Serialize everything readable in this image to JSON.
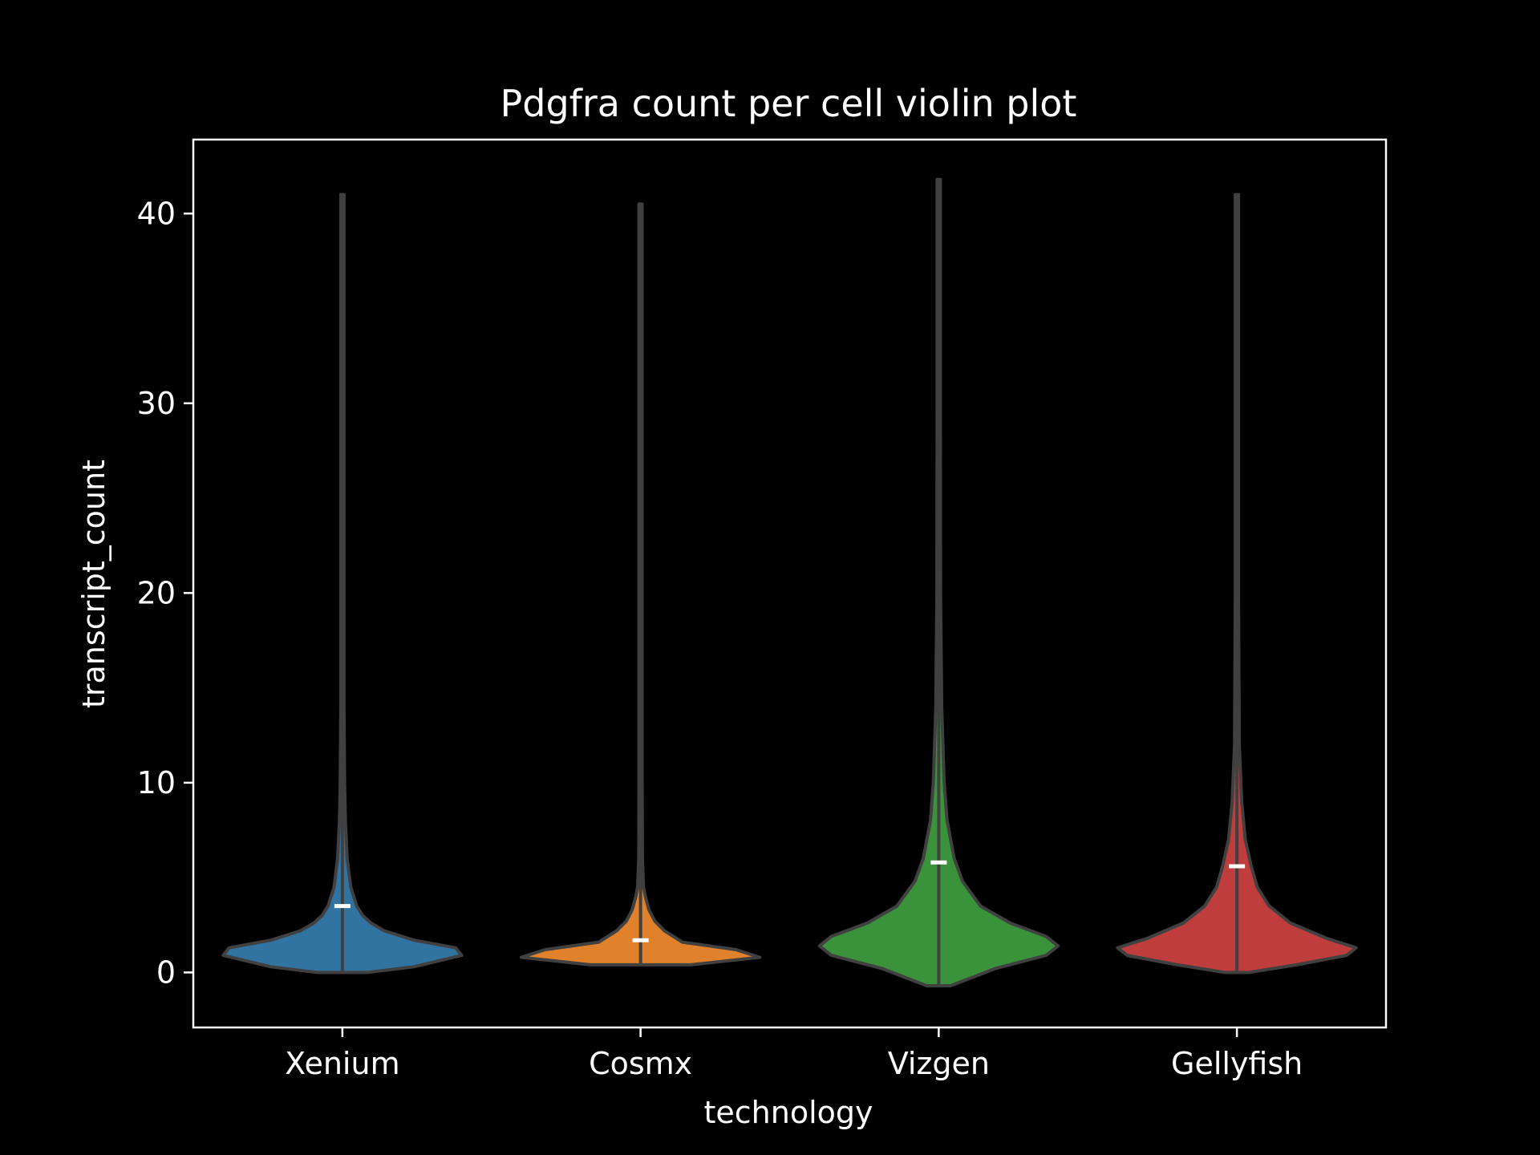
{
  "colors": {
    "background": "#000000",
    "axes": "#ffffff",
    "violin_edge": "#404040",
    "median_mark": "#ffffff"
  },
  "chart_data": {
    "type": "violin",
    "title": "Pdgfra count per cell violin plot",
    "xlabel": "technology",
    "ylabel": "transcript_count",
    "ylim": [
      -2.9,
      43.9
    ],
    "yticks": [
      "0",
      "10",
      "20",
      "30",
      "40"
    ],
    "ytick_values": [
      0,
      10,
      20,
      30,
      40
    ],
    "grid": false,
    "categories": [
      "Xenium",
      "Cosmx",
      "Vizgen",
      "Gellyfish"
    ],
    "series": [
      {
        "color": "#3274a1",
        "median": 3.5,
        "min": 0.0,
        "max": 41.0,
        "density_profile": [
          [
            0.0,
            0.21
          ],
          [
            0.3,
            0.6
          ],
          [
            0.9,
            1.0
          ],
          [
            1.3,
            0.95
          ],
          [
            1.7,
            0.6
          ],
          [
            2.2,
            0.35
          ],
          [
            2.6,
            0.24
          ],
          [
            3.0,
            0.17
          ],
          [
            3.5,
            0.12
          ],
          [
            4.5,
            0.07
          ],
          [
            6.0,
            0.04
          ],
          [
            8.0,
            0.025
          ],
          [
            10.0,
            0.018
          ],
          [
            14.0,
            0.012
          ],
          [
            20.0,
            0.009
          ],
          [
            30.0,
            0.007
          ],
          [
            41.0,
            0.005
          ]
        ]
      },
      {
        "color": "#e1812c",
        "median": 1.7,
        "min": 0.4,
        "max": 40.5,
        "density_profile": [
          [
            0.4,
            0.42
          ],
          [
            0.8,
            1.0
          ],
          [
            1.2,
            0.8
          ],
          [
            1.6,
            0.35
          ],
          [
            2.2,
            0.2
          ],
          [
            2.7,
            0.12
          ],
          [
            3.3,
            0.07
          ],
          [
            4.0,
            0.04
          ],
          [
            4.5,
            0.025
          ],
          [
            6.0,
            0.015
          ],
          [
            10.0,
            0.01
          ],
          [
            20.0,
            0.008
          ],
          [
            40.5,
            0.006
          ]
        ]
      },
      {
        "color": "#3a923a",
        "median": 5.8,
        "min": -0.7,
        "max": 41.8,
        "density_profile": [
          [
            -0.7,
            0.1
          ],
          [
            0.2,
            0.47
          ],
          [
            0.9,
            0.9
          ],
          [
            1.4,
            1.0
          ],
          [
            1.9,
            0.9
          ],
          [
            2.6,
            0.6
          ],
          [
            3.5,
            0.35
          ],
          [
            4.8,
            0.2
          ],
          [
            6.0,
            0.13
          ],
          [
            8.0,
            0.07
          ],
          [
            10.0,
            0.045
          ],
          [
            14.0,
            0.025
          ],
          [
            20.0,
            0.015
          ],
          [
            30.0,
            0.009
          ],
          [
            41.8,
            0.005
          ]
        ]
      },
      {
        "color": "#c03d3e",
        "median": 5.6,
        "min": 0.0,
        "max": 41.0,
        "density_profile": [
          [
            0.0,
            0.1
          ],
          [
            0.4,
            0.5
          ],
          [
            0.9,
            0.92
          ],
          [
            1.3,
            1.0
          ],
          [
            1.8,
            0.75
          ],
          [
            2.6,
            0.45
          ],
          [
            3.5,
            0.27
          ],
          [
            4.5,
            0.17
          ],
          [
            5.6,
            0.12
          ],
          [
            7.0,
            0.07
          ],
          [
            9.0,
            0.04
          ],
          [
            12.0,
            0.02
          ],
          [
            20.0,
            0.01
          ],
          [
            30.0,
            0.007
          ],
          [
            41.0,
            0.005
          ]
        ]
      }
    ]
  }
}
